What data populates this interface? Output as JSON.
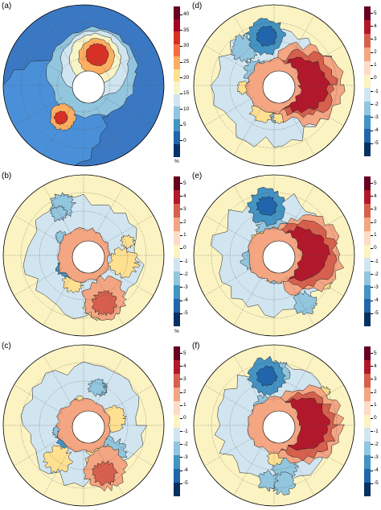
{
  "panels": [
    {
      "id": "a",
      "label": "(a)",
      "scale": "pct",
      "ticks": [
        "40",
        "35",
        "30",
        "25",
        "20",
        "15",
        "10",
        "5",
        "0"
      ],
      "unit": "%"
    },
    {
      "id": "b",
      "label": "(b)",
      "scale": "div",
      "ticks": [
        "5",
        "4",
        "3",
        "2",
        "1",
        "0",
        "-1",
        "-2",
        "-3",
        "-4",
        "-5"
      ],
      "unit": "%"
    },
    {
      "id": "c",
      "label": "(c)",
      "scale": "div",
      "ticks": [
        "5",
        "4",
        "3",
        "2",
        "1",
        "0",
        "-1",
        "-2",
        "-3",
        "-4",
        "-5"
      ],
      "unit": ""
    },
    {
      "id": "d",
      "label": "(d)",
      "scale": "div",
      "ticks": [
        "5",
        "4",
        "3",
        "2",
        "1",
        "0",
        "-1",
        "-2",
        "-3",
        "-4",
        "-5"
      ],
      "unit": ""
    },
    {
      "id": "e",
      "label": "(e)",
      "scale": "div",
      "ticks": [
        "5",
        "4",
        "3",
        "2",
        "1",
        "0",
        "-1",
        "-2",
        "-3",
        "-4",
        "-5"
      ],
      "unit": ""
    },
    {
      "id": "f",
      "label": "(f)",
      "scale": "div",
      "ticks": [
        "5",
        "4",
        "3",
        "2",
        "1",
        "0",
        "-1",
        "-2",
        "-3",
        "-4",
        "-5"
      ],
      "unit": ""
    }
  ],
  "colors": {
    "pct": [
      "#08306b",
      "#2166ac",
      "#4393c3",
      "#92c5de",
      "#d1e5f0",
      "#f7f4c8",
      "#fee090",
      "#fdae61",
      "#f46d43",
      "#d73027",
      "#a50026",
      "#67001f"
    ],
    "div": [
      "#67001f",
      "#b2182b",
      "#d6604d",
      "#f4a582",
      "#fddbc7",
      "#fbf3c2",
      "#d1e5f0",
      "#92c5de",
      "#4393c3",
      "#2166ac",
      "#053061"
    ]
  }
}
